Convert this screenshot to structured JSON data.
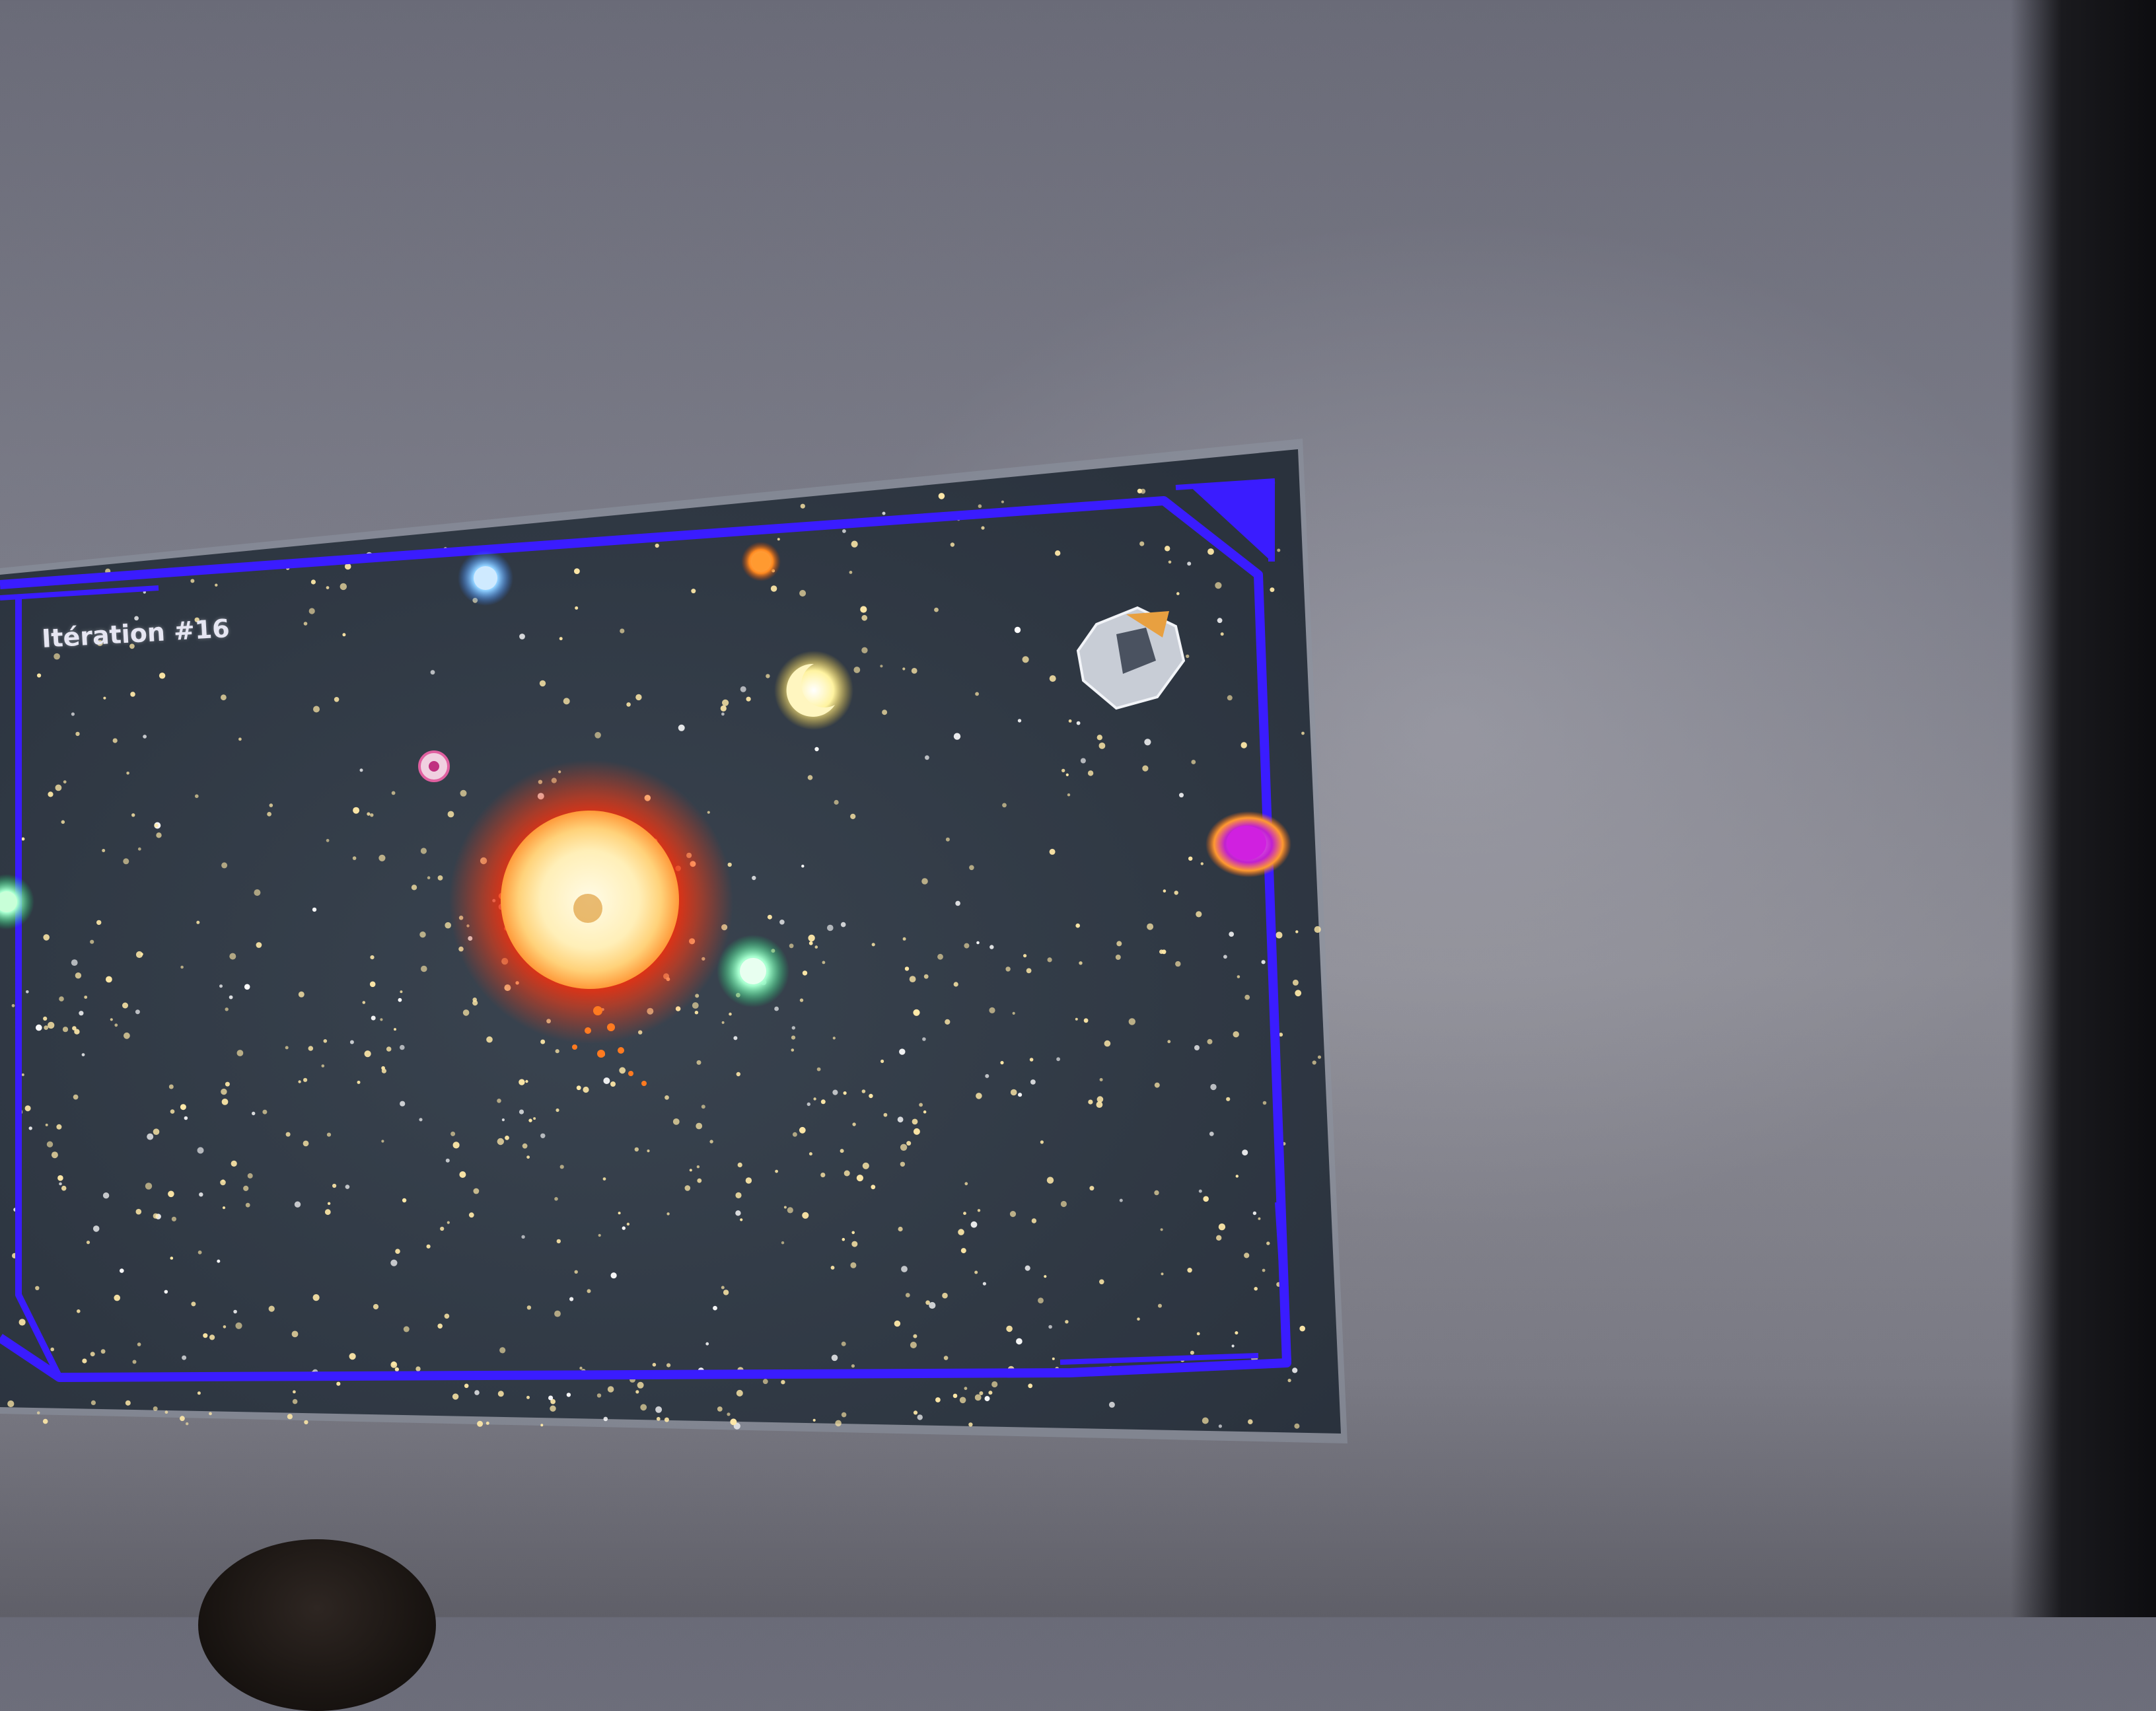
{
  "game": {
    "iteration_label": "Itération #16"
  },
  "scene": {
    "colors": {
      "frame": "#3a1cff",
      "sky": "#2c3440",
      "sun_core": "#fff1c4",
      "sun_glow": "#ff3a10",
      "stars": "#ffe9a8"
    },
    "bodies": [
      {
        "name": "sun",
        "icon": "sun-icon"
      },
      {
        "name": "blue-planet",
        "icon": "planet-icon"
      },
      {
        "name": "orange-planet",
        "icon": "planet-icon"
      },
      {
        "name": "yellow-moon",
        "icon": "crescent-icon"
      },
      {
        "name": "asteroid",
        "icon": "asteroid-icon"
      },
      {
        "name": "pink-planet",
        "icon": "planet-icon"
      },
      {
        "name": "magenta-planet",
        "icon": "planet-icon"
      },
      {
        "name": "green-planet",
        "icon": "planet-icon"
      },
      {
        "name": "green-planet-edge",
        "icon": "planet-icon"
      }
    ]
  }
}
